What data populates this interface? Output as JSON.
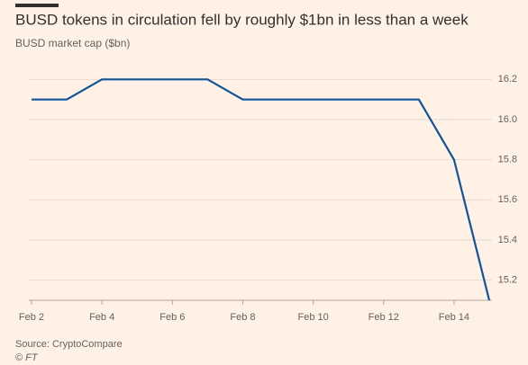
{
  "chart_data": {
    "type": "line",
    "title": "BUSD tokens in circulation fell by roughly $1bn in less than a week",
    "subtitle": "BUSD market cap ($bn)",
    "categories": [
      "Feb 2",
      null,
      "Feb 4",
      null,
      "Feb 6",
      null,
      "Feb 8",
      null,
      "Feb 10",
      null,
      "Feb 12",
      null,
      "Feb 14",
      null
    ],
    "series": [
      {
        "name": "BUSD market cap",
        "color": "#0f5499",
        "values": [
          16.1,
          16.1,
          16.2,
          16.2,
          16.2,
          16.2,
          16.1,
          16.1,
          16.1,
          16.1,
          16.1,
          16.1,
          15.8,
          15.1
        ]
      }
    ],
    "ylim": [
      15.1,
      16.3
    ],
    "yticks": [
      15.2,
      15.4,
      15.6,
      15.8,
      {
        "value": 16,
        "label": "16.0"
      },
      16.2
    ],
    "grid": true,
    "source": "Source: CryptoCompare",
    "credit": "© FT"
  }
}
